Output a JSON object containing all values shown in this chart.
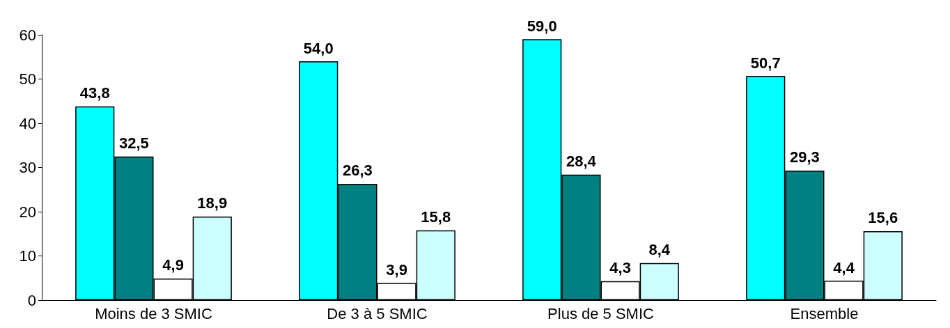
{
  "chart_data": {
    "type": "bar",
    "categories": [
      "Moins de 3 SMIC",
      "De 3 à 5 SMIC",
      "Plus de 5 SMIC",
      "Ensemble"
    ],
    "series": [
      {
        "color": "#00ffff",
        "values": [
          43.8,
          54.0,
          59.0,
          50.7
        ],
        "value_labels": [
          "43,8",
          "54,0",
          "59,0",
          "50,7"
        ]
      },
      {
        "color": "#008080",
        "values": [
          32.5,
          26.3,
          28.4,
          29.3
        ],
        "value_labels": [
          "32,5",
          "26,3",
          "28,4",
          "29,3"
        ]
      },
      {
        "color": "#ffffff",
        "values": [
          4.9,
          3.9,
          4.3,
          4.4
        ],
        "value_labels": [
          "4,9",
          "3,9",
          "4,3",
          "4,4"
        ]
      },
      {
        "color": "#ccffff",
        "values": [
          18.9,
          15.8,
          8.4,
          15.6
        ],
        "value_labels": [
          "18,9",
          "15,8",
          "8,4",
          "15,6"
        ]
      }
    ],
    "ylim": [
      0,
      60
    ],
    "yticks": [
      0,
      10,
      20,
      30,
      40,
      50,
      60
    ]
  }
}
